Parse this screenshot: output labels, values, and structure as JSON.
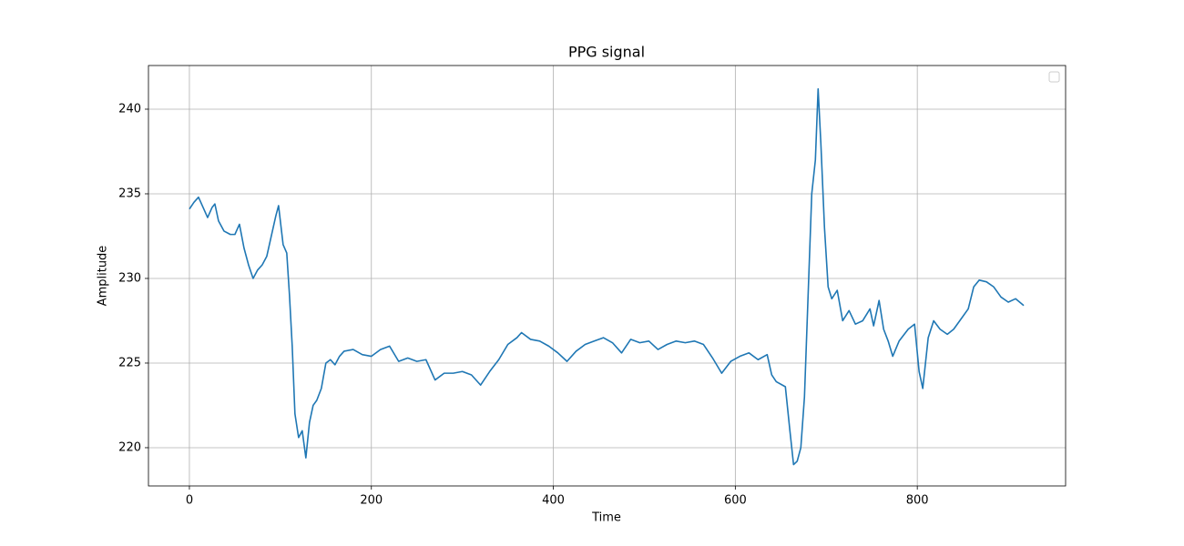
{
  "chart_data": {
    "type": "line",
    "title": "PPG signal",
    "xlabel": "Time",
    "ylabel": "Amplitude",
    "color": "#1f77b4",
    "grid": true,
    "xlim": [
      -45,
      963
    ],
    "ylim": [
      217.74,
      242.58
    ],
    "xticks": [
      0,
      200,
      400,
      600,
      800
    ],
    "yticks": [
      220,
      225,
      230,
      235,
      240
    ],
    "x": [
      0,
      5,
      10,
      15,
      20,
      25,
      28,
      32,
      38,
      45,
      50,
      55,
      60,
      65,
      70,
      75,
      80,
      85,
      90,
      95,
      98,
      103,
      107,
      110,
      113,
      116,
      120,
      124,
      128,
      132,
      136,
      140,
      145,
      150,
      155,
      160,
      165,
      170,
      180,
      190,
      200,
      210,
      220,
      230,
      240,
      250,
      260,
      270,
      280,
      290,
      300,
      310,
      320,
      330,
      340,
      350,
      360,
      365,
      375,
      385,
      395,
      405,
      415,
      425,
      435,
      445,
      455,
      465,
      475,
      485,
      495,
      505,
      515,
      525,
      535,
      545,
      555,
      565,
      575,
      585,
      595,
      605,
      615,
      625,
      635,
      640,
      645,
      655,
      660,
      664,
      668,
      672,
      676,
      680,
      684,
      688,
      691,
      694,
      698,
      702,
      706,
      712,
      718,
      725,
      732,
      740,
      748,
      752,
      758,
      763,
      768,
      773,
      780,
      790,
      797,
      802,
      806,
      812,
      818,
      825,
      833,
      840,
      848,
      856,
      862,
      868,
      876,
      884,
      892,
      900,
      908,
      917
    ],
    "values": [
      234.1,
      234.5,
      234.8,
      234.2,
      233.6,
      234.2,
      234.4,
      233.4,
      232.8,
      232.6,
      232.6,
      233.2,
      231.8,
      230.8,
      230.0,
      230.5,
      230.8,
      231.3,
      232.5,
      233.7,
      234.3,
      232.0,
      231.5,
      229,
      226,
      222,
      220.6,
      221,
      219.4,
      221.5,
      222.5,
      222.8,
      223.5,
      225,
      225.2,
      224.9,
      225.4,
      225.7,
      225.8,
      225.5,
      225.4,
      225.8,
      226.0,
      225.1,
      225.3,
      225.1,
      225.2,
      224.0,
      224.4,
      224.4,
      224.5,
      224.3,
      223.7,
      224.5,
      225.2,
      226.1,
      226.5,
      226.8,
      226.4,
      226.3,
      226.0,
      225.6,
      225.1,
      225.7,
      226.1,
      226.3,
      226.5,
      226.2,
      225.6,
      226.4,
      226.2,
      226.3,
      225.8,
      226.1,
      226.3,
      226.2,
      226.3,
      226.1,
      225.3,
      224.4,
      225.1,
      225.4,
      225.6,
      225.2,
      225.5,
      224.3,
      223.9,
      223.6,
      221,
      219.0,
      219.2,
      220,
      223,
      229,
      235,
      237,
      241.2,
      238,
      233,
      229.5,
      228.8,
      229.3,
      227.5,
      228.1,
      227.3,
      227.5,
      228.2,
      227.2,
      228.7,
      227.0,
      226.3,
      225.4,
      226.3,
      227.0,
      227.3,
      224.5,
      223.5,
      226.5,
      227.5,
      227.0,
      226.7,
      227.0,
      227.6,
      228.2,
      229.5,
      229.9,
      229.8,
      229.5,
      228.9,
      228.6,
      228.8,
      228.4
    ]
  }
}
